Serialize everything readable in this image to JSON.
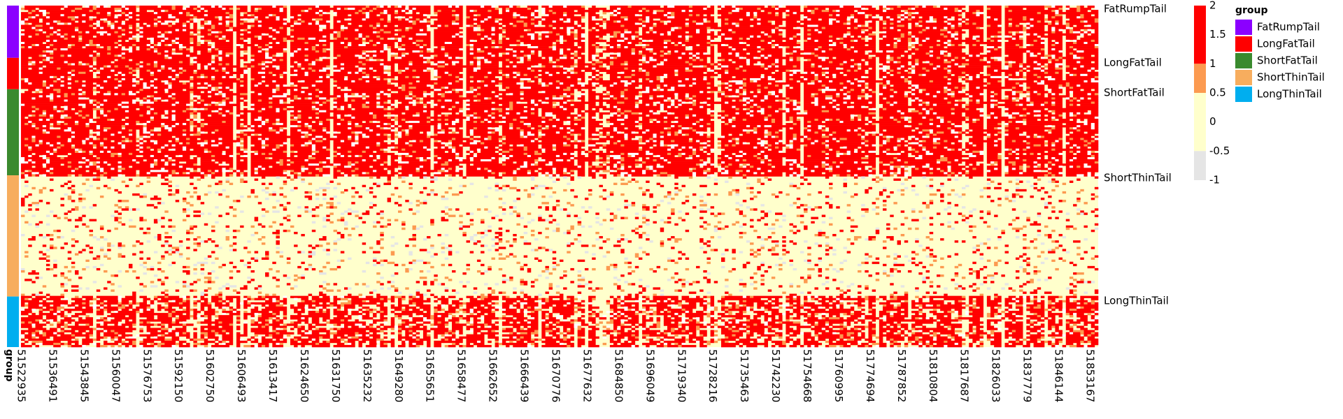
{
  "chart_data": {
    "type": "heatmap",
    "title": "",
    "xlabel": "",
    "ylabel": "",
    "annotation_title": "group",
    "x_tick_labels": [
      "51522935",
      "51536491",
      "51543845",
      "51560047",
      "51576753",
      "51592150",
      "51602750",
      "51606493",
      "51613417",
      "51624650",
      "51631750",
      "51635232",
      "51649280",
      "51655651",
      "51658477",
      "51662652",
      "51666439",
      "51670776",
      "51677632",
      "51684850",
      "51696049",
      "51719340",
      "51728216",
      "51735463",
      "51742230",
      "51754668",
      "51760995",
      "51774694",
      "51787852",
      "51810804",
      "51817687",
      "51826033",
      "51837779",
      "51846144",
      "51853167"
    ],
    "groups": [
      {
        "name": "FatRumpTail",
        "color": "#8B00FF",
        "row_fraction": 0.153
      },
      {
        "name": "LongFatTail",
        "color": "#FF0000",
        "row_fraction": 0.092
      },
      {
        "name": "ShortFatTail",
        "color": "#3A8A2E",
        "row_fraction": 0.252
      },
      {
        "name": "ShortThinTail",
        "color": "#F7AD5E",
        "row_fraction": 0.355
      },
      {
        "name": "LongThinTail",
        "color": "#00AEEF",
        "row_fraction": 0.148
      }
    ],
    "row_labels": [
      "FatRumpTail",
      "LongFatTail",
      "ShortFatTail",
      "ShortThinTail",
      "LongThinTail"
    ],
    "color_scale": {
      "ticks": [
        "2",
        "1.5",
        "1",
        "0.5",
        "0",
        "-0.5",
        "-1"
      ],
      "breaks": [
        {
          "value": 2,
          "color": "#FF0000"
        },
        {
          "value": 1,
          "color": "#FC9A50"
        },
        {
          "value": 0,
          "color": "#FFFFCC"
        },
        {
          "value": -1,
          "color": "#E5E5E5"
        }
      ]
    },
    "legend": {
      "title": "group",
      "items": [
        "FatRumpTail",
        "LongFatTail",
        "ShortFatTail",
        "ShortThinTail",
        "LongThinTail"
      ],
      "colors": [
        "#8B00FF",
        "#FF0000",
        "#3A8A2E",
        "#F7AD5E",
        "#00AEEF"
      ],
      "position": "right"
    },
    "cell_colors": {
      "high": "#FF0000",
      "mid": "#FC9A50",
      "zero": "#FFFFCC",
      "missing": "#FFFFFF",
      "low": "#E5E5E5"
    },
    "grid": false
  }
}
